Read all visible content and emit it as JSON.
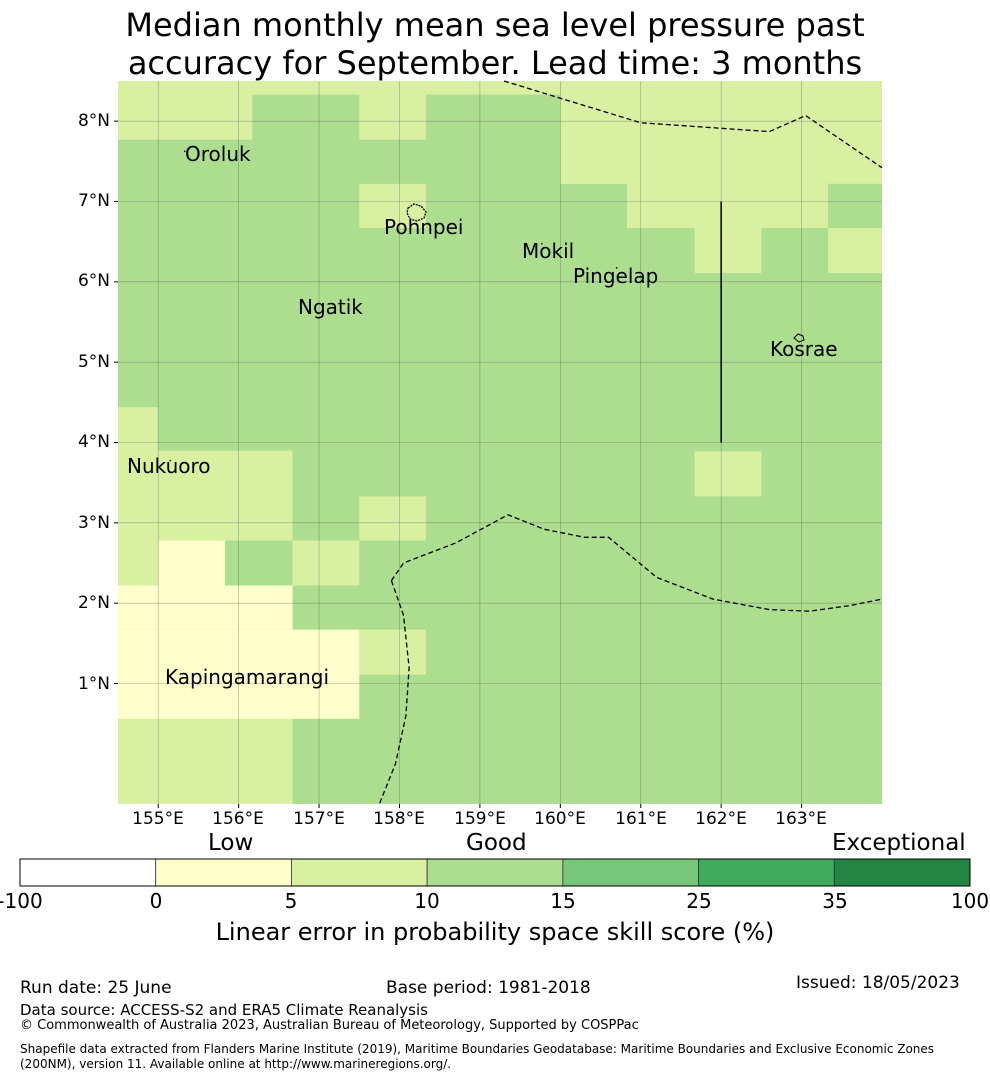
{
  "title": {
    "line1": "Median monthly mean sea level pressure past",
    "line2": "accuracy for September. Lead time: 3 months"
  },
  "map": {
    "lon_range": [
      154.5,
      164.0
    ],
    "lat_range": [
      -0.5,
      8.5
    ],
    "x_ticks": [
      "155°E",
      "156°E",
      "157°E",
      "158°E",
      "159°E",
      "160°E",
      "161°E",
      "162°E",
      "163°E"
    ],
    "x_tick_values": [
      155,
      156,
      157,
      158,
      159,
      160,
      161,
      162,
      163
    ],
    "y_ticks": [
      "1°N",
      "2°N",
      "3°N",
      "4°N",
      "5°N",
      "6°N",
      "7°N",
      "8°N"
    ],
    "y_tick_values": [
      1,
      2,
      3,
      4,
      5,
      6,
      7,
      8
    ],
    "background_color": "#addd8e",
    "places": [
      {
        "name": "Oroluk",
        "lon": 155.33,
        "lat": 7.45
      },
      {
        "name": "Pohnpei",
        "lon": 158.3,
        "lat": 6.6
      },
      {
        "name": "Mokil",
        "lon": 159.77,
        "lat": 6.3
      },
      {
        "name": "Pingelap",
        "lon": 160.7,
        "lat": 6.0
      },
      {
        "name": "Ngatik",
        "lon": 157.17,
        "lat": 5.55
      },
      {
        "name": "Kosrae",
        "lon": 163.0,
        "lat": 5.1
      },
      {
        "name": "Nukuoro",
        "lon": 155.15,
        "lat": 3.6
      },
      {
        "name": "Kapingamarangi",
        "lon": 156.15,
        "lat": 0.95
      }
    ],
    "cells": [
      {
        "lon": [
          154.5,
          155.33
        ],
        "lat": [
          7.77,
          8.5
        ],
        "category": "5-10"
      },
      {
        "lon": [
          155.33,
          156.17
        ],
        "lat": [
          7.77,
          8.5
        ],
        "category": "5-10"
      },
      {
        "lon": [
          156.17,
          157.83
        ],
        "lat": [
          8.33,
          8.5
        ],
        "category": "5-10"
      },
      {
        "lon": [
          157.5,
          158.33
        ],
        "lat": [
          7.77,
          8.5
        ],
        "category": "5-10"
      },
      {
        "lon": [
          158.33,
          160.0
        ],
        "lat": [
          8.33,
          8.5
        ],
        "category": "5-10"
      },
      {
        "lon": [
          160.0,
          164.0
        ],
        "lat": [
          7.22,
          8.5
        ],
        "category": "5-10"
      },
      {
        "lon": [
          160.0,
          160.83
        ],
        "lat": [
          7.22,
          8.33
        ],
        "category": "5-10"
      },
      {
        "lon": [
          160.83,
          163.33
        ],
        "lat": [
          6.67,
          7.22
        ],
        "category": "5-10"
      },
      {
        "lon": [
          157.5,
          158.33
        ],
        "lat": [
          6.67,
          7.22
        ],
        "category": "5-10"
      },
      {
        "lon": [
          161.67,
          162.5
        ],
        "lat": [
          6.11,
          6.67
        ],
        "category": "5-10"
      },
      {
        "lon": [
          163.33,
          164.0
        ],
        "lat": [
          6.11,
          6.67
        ],
        "category": "5-10"
      },
      {
        "lon": [
          154.5,
          155.0
        ],
        "lat": [
          2.22,
          4.44
        ],
        "category": "5-10"
      },
      {
        "lon": [
          155.0,
          156.67
        ],
        "lat": [
          2.78,
          3.89
        ],
        "category": "5-10"
      },
      {
        "lon": [
          155.0,
          156.67
        ],
        "lat": [
          3.89,
          3.9
        ],
        "category": "5-10"
      },
      {
        "lon": [
          157.5,
          158.33
        ],
        "lat": [
          2.78,
          3.33
        ],
        "category": "5-10"
      },
      {
        "lon": [
          156.67,
          157.5
        ],
        "lat": [
          2.22,
          2.78
        ],
        "category": "5-10"
      },
      {
        "lon": [
          161.67,
          162.5
        ],
        "lat": [
          3.33,
          3.89
        ],
        "category": "5-10"
      },
      {
        "lon": [
          157.5,
          158.33
        ],
        "lat": [
          1.11,
          1.67
        ],
        "category": "5-10"
      },
      {
        "lon": [
          154.5,
          156.67
        ],
        "lat": [
          -0.5,
          0.56
        ],
        "category": "5-10"
      },
      {
        "lon": [
          155.0,
          155.83
        ],
        "lat": [
          2.22,
          2.78
        ],
        "category": "0-5"
      },
      {
        "lon": [
          154.5,
          156.67
        ],
        "lat": [
          1.67,
          2.22
        ],
        "category": "0-5"
      },
      {
        "lon": [
          154.5,
          157.5
        ],
        "lat": [
          0.56,
          1.67
        ],
        "category": "0-5"
      }
    ],
    "boundary_points": [
      [
        [
          159.3,
          8.5
        ],
        [
          161.0,
          7.98
        ],
        [
          162.6,
          7.87
        ],
        [
          163.05,
          8.07
        ],
        [
          164.0,
          7.42
        ]
      ],
      [
        [
          157.9,
          2.28
        ],
        [
          158.05,
          2.5
        ],
        [
          158.7,
          2.75
        ],
        [
          159.35,
          3.1
        ],
        [
          159.8,
          2.92
        ],
        [
          160.3,
          2.82
        ],
        [
          160.6,
          2.82
        ],
        [
          161.2,
          2.32
        ],
        [
          161.9,
          2.05
        ],
        [
          162.6,
          1.92
        ],
        [
          163.1,
          1.9
        ],
        [
          163.6,
          1.97
        ],
        [
          164.0,
          2.05
        ]
      ],
      [
        [
          157.9,
          2.28
        ],
        [
          158.05,
          1.85
        ],
        [
          158.12,
          1.2
        ],
        [
          158.08,
          0.6
        ],
        [
          157.95,
          0.0
        ],
        [
          157.75,
          -0.5
        ]
      ]
    ],
    "boundary_solid": [
      [
        162.0,
        7.0
      ],
      [
        162.0,
        4.0
      ]
    ]
  },
  "colorbar": {
    "categories": [
      "Low",
      "Good",
      "Exceptional"
    ],
    "ticks": [
      "-100",
      "0",
      "5",
      "10",
      "15",
      "25",
      "35",
      "100"
    ],
    "colors": [
      "#ffffff",
      "#ffffcc",
      "#d9f0a3",
      "#addd8e",
      "#78c679",
      "#41ab5d",
      "#238443"
    ],
    "label": "Linear error in probability space skill score (%)"
  },
  "category_colors": {
    "0-5": "#ffffcc",
    "5-10": "#d9f0a3",
    "10-15": "#addd8e"
  },
  "footer": {
    "run_date": "Run date: 25 June",
    "base_period": "Base period: 1981-2018",
    "issued": "Issued: 18/05/2023",
    "data_source": "Data source: ACCESS-S2 and ERA5 Climate Reanalysis",
    "copyright": "© Commonwealth of Australia 2023, Australian Bureau of Meteorology, Supported by COSPPac",
    "shapefile": "Shapefile data extracted from Flanders Marine Institute (2019), Maritime Boundaries Geodatabase: Maritime Boundaries and Exclusive Economic Zones (200NM), version 11. Available online at http://www.marineregions.org/."
  }
}
